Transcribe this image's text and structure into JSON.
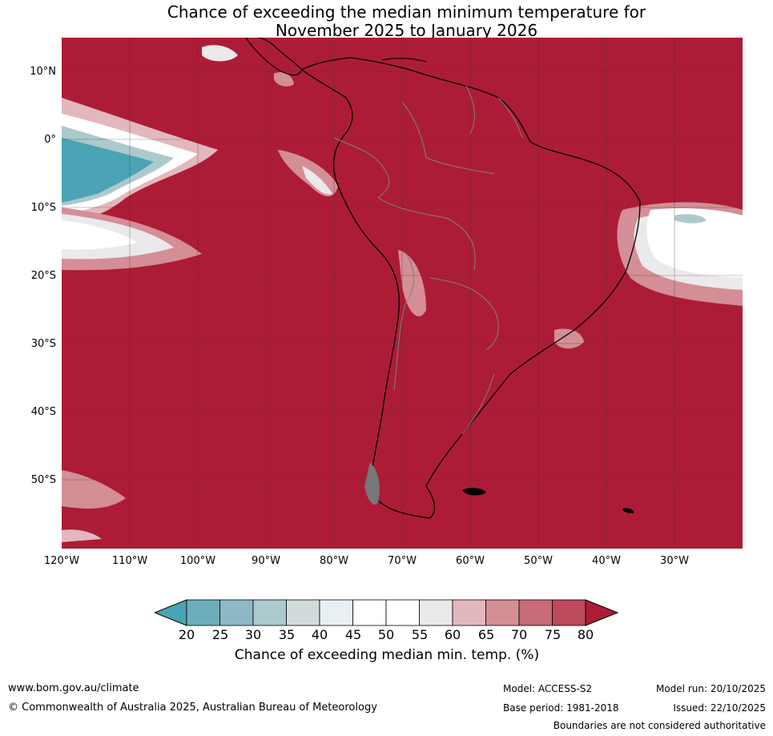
{
  "title": {
    "line1": "Chance of exceeding the median minimum temperature for",
    "line2": "November 2025 to January 2026"
  },
  "axes": {
    "lat_labels": [
      "10°N",
      "0°",
      "10°S",
      "20°S",
      "30°S",
      "40°S",
      "50°S"
    ],
    "lon_labels": [
      "120°W",
      "110°W",
      "100°W",
      "90°W",
      "80°W",
      "70°W",
      "60°W",
      "50°W",
      "40°W",
      "30°W"
    ]
  },
  "colorbar": {
    "ticks": [
      "20",
      "25",
      "30",
      "35",
      "40",
      "45",
      "50",
      "55",
      "60",
      "65",
      "70",
      "75",
      "80"
    ],
    "colors": [
      "#4aa4b5",
      "#6eaebc",
      "#8db9c6",
      "#acc9cd",
      "#d2dadc",
      "#e9f0f3",
      "#ffffff",
      "#ffffff",
      "#ebe9eb",
      "#e2b8be",
      "#d48e96",
      "#c86b76",
      "#be4a5a",
      "#ac1c36"
    ],
    "label": "Chance of exceeding median min. temp. (%)"
  },
  "colors": {
    "high": "#ad1c36",
    "low": "#4aa4b5",
    "white": "#ffffff"
  },
  "footer": {
    "website": "www.bom.gov.au/climate",
    "copyright": "© Commonwealth of Australia 2025, Australian Bureau of Meteorology",
    "model": "Model: ACCESS-S2",
    "base_period": "Base period: 1981-2018",
    "model_run": "Model run: 20/10/2025",
    "issued": "Issued: 22/10/2025",
    "disclaimer": "Boundaries are not considered authoritative"
  }
}
